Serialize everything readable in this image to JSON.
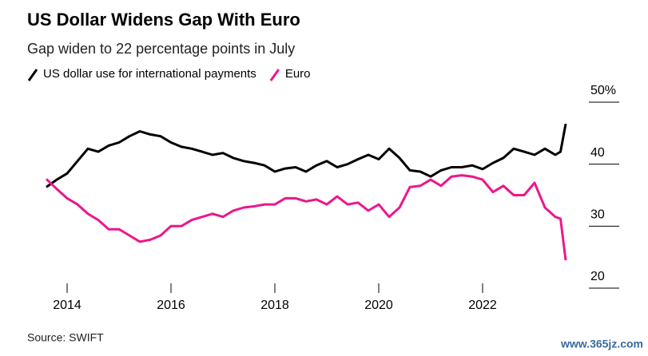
{
  "chart_data": {
    "type": "line",
    "title": "US Dollar Widens Gap With Euro",
    "subtitle": "Gap widen to 22 percentage points in July",
    "source": "Source: SWIFT",
    "watermark": "www.365jz.com",
    "x": [
      2013.6,
      2013.8,
      2014.0,
      2014.2,
      2014.4,
      2014.6,
      2014.8,
      2015.0,
      2015.2,
      2015.4,
      2015.6,
      2015.8,
      2016.0,
      2016.2,
      2016.4,
      2016.6,
      2016.8,
      2017.0,
      2017.2,
      2017.4,
      2017.6,
      2017.8,
      2018.0,
      2018.2,
      2018.4,
      2018.6,
      2018.8,
      2019.0,
      2019.2,
      2019.4,
      2019.6,
      2019.8,
      2020.0,
      2020.2,
      2020.4,
      2020.6,
      2020.8,
      2021.0,
      2021.2,
      2021.4,
      2021.6,
      2021.8,
      2022.0,
      2022.2,
      2022.4,
      2022.6,
      2022.8,
      2023.0,
      2023.2,
      2023.4,
      2023.5,
      2023.6
    ],
    "series": [
      {
        "name": "US dollar use for international payments",
        "color": "#000000",
        "values": [
          36.3,
          37.5,
          38.5,
          40.5,
          42.5,
          42.0,
          43.0,
          43.5,
          44.5,
          45.3,
          44.8,
          44.5,
          43.5,
          42.8,
          42.5,
          42.0,
          41.5,
          41.8,
          41.0,
          40.5,
          40.2,
          39.8,
          38.8,
          39.3,
          39.5,
          38.8,
          39.8,
          40.5,
          39.5,
          40.0,
          40.8,
          41.5,
          40.8,
          42.5,
          41.0,
          39.0,
          38.8,
          38.0,
          39.0,
          39.5,
          39.5,
          39.8,
          39.2,
          40.2,
          41.0,
          42.5,
          42.0,
          41.5,
          42.5,
          41.5,
          42.0,
          46.5
        ]
      },
      {
        "name": "Euro",
        "color": "#ec178c",
        "values": [
          37.6,
          36.0,
          34.5,
          33.5,
          32.0,
          31.0,
          29.5,
          29.5,
          28.5,
          27.5,
          27.8,
          28.5,
          30.0,
          30.0,
          31.0,
          31.5,
          32.0,
          31.5,
          32.5,
          33.0,
          33.2,
          33.5,
          33.5,
          34.5,
          34.5,
          34.0,
          34.3,
          33.5,
          34.8,
          33.5,
          33.8,
          32.5,
          33.5,
          31.5,
          33.0,
          36.3,
          36.5,
          37.5,
          36.5,
          38.0,
          38.2,
          38.0,
          37.5,
          35.5,
          36.5,
          35.0,
          35.0,
          37.0,
          33.0,
          31.5,
          31.2,
          24.5
        ]
      }
    ],
    "xlim": [
      2013.3,
      2023.8
    ],
    "xticks": [
      2014,
      2016,
      2018,
      2020,
      2022
    ],
    "ylim": [
      20,
      50
    ],
    "yticks": [
      20,
      30,
      40,
      {
        "value": 50,
        "label": "50%"
      }
    ]
  }
}
